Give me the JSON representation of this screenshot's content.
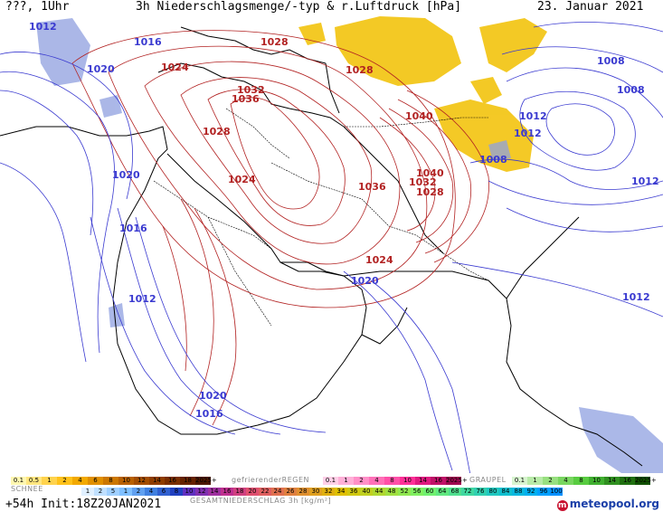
{
  "header": {
    "left": "???, 1Uhr",
    "title": "3h Niederschlagsmenge/-typ & r.Luftdruck [hPa]",
    "date": "23. Januar 2021"
  },
  "footer": {
    "run": "+54h  Init:18Z20JAN2021",
    "logo": "meteopool.org"
  },
  "legend": {
    "regen_label": "gefrierenderREGEN",
    "graupel_label": "GRAUPEL",
    "schnee_label": "SCHNEE",
    "gesamt_label": "GESAMTNIEDERSCHLAG 3h [kg/m²]",
    "rain_scale": [
      "0.1",
      "0.5",
      "1",
      "2",
      "4",
      "6",
      "8",
      "10",
      "12",
      "14",
      "16",
      "18",
      "2025+"
    ],
    "freezing_scale": [
      "0.1",
      "1",
      "2",
      "4",
      "8",
      "10",
      "14",
      "16",
      "2025+"
    ],
    "graupel_scale": [
      "0.1",
      "1",
      "2",
      "4",
      "8",
      "10",
      "14",
      "16",
      "2025+"
    ],
    "snow_scale": [
      "1",
      "2",
      "5",
      "1",
      "2",
      "4",
      "6",
      "8",
      "10",
      "12",
      "14",
      "16",
      "18",
      "20",
      "22",
      "24",
      "26",
      "28",
      "30",
      "32",
      "34",
      "36",
      "40",
      "44",
      "48",
      "52",
      "56",
      "60",
      "64",
      "68",
      "72",
      "76",
      "80",
      "84",
      "88",
      "92",
      "96",
      "100"
    ]
  },
  "colors": {
    "high_isobar": "#b22222",
    "low_isobar": "#3a3ad0",
    "precip": "#f2c000",
    "snow": "#8fa0e0",
    "coast": "#000000"
  },
  "isobar_labels": [
    {
      "text": "1012",
      "kind": "low"
    },
    {
      "text": "1016",
      "kind": "low"
    },
    {
      "text": "1020",
      "kind": "low"
    },
    {
      "text": "1024",
      "kind": "high"
    },
    {
      "text": "1028",
      "kind": "high"
    },
    {
      "text": "1028",
      "kind": "high"
    },
    {
      "text": "1032",
      "kind": "high"
    },
    {
      "text": "1036",
      "kind": "high"
    },
    {
      "text": "1028",
      "kind": "high"
    },
    {
      "text": "1020",
      "kind": "low"
    },
    {
      "text": "1016",
      "kind": "low"
    },
    {
      "text": "1012",
      "kind": "low"
    },
    {
      "text": "1024",
      "kind": "high"
    },
    {
      "text": "1036",
      "kind": "high"
    },
    {
      "text": "1032",
      "kind": "high"
    },
    {
      "text": "1040",
      "kind": "high"
    },
    {
      "text": "1040",
      "kind": "high"
    },
    {
      "text": "1028",
      "kind": "high"
    },
    {
      "text": "1024",
      "kind": "high"
    },
    {
      "text": "1020",
      "kind": "low"
    },
    {
      "text": "1020",
      "kind": "low"
    },
    {
      "text": "1016",
      "kind": "low"
    },
    {
      "text": "1008",
      "kind": "low"
    },
    {
      "text": "1008",
      "kind": "low"
    },
    {
      "text": "1012",
      "kind": "low"
    },
    {
      "text": "1012",
      "kind": "low"
    },
    {
      "text": "1008",
      "kind": "low"
    },
    {
      "text": "1012",
      "kind": "low"
    },
    {
      "text": "1012",
      "kind": "low"
    }
  ]
}
